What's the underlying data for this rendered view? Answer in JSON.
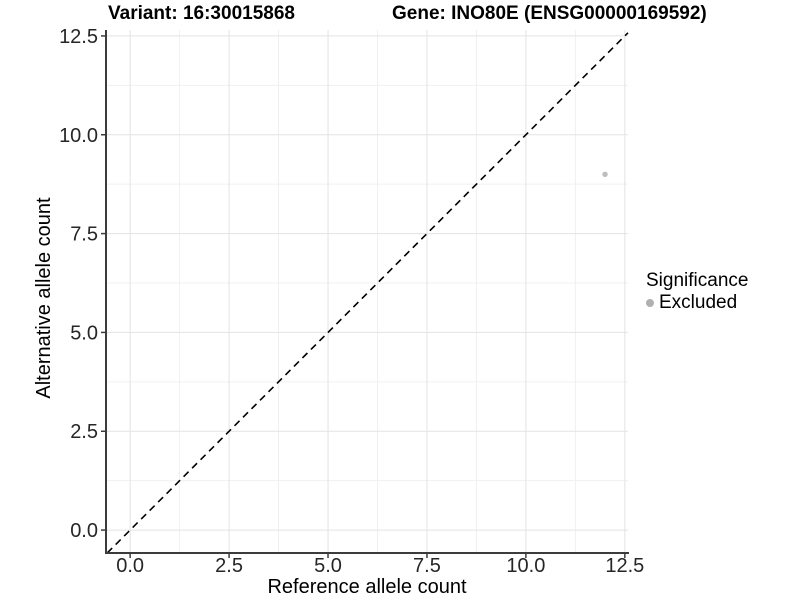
{
  "chart_data": {
    "type": "scatter",
    "titles": {
      "left": "Variant: 16:30015868",
      "right": "Gene: INO80E (ENSG00000169592)"
    },
    "xlabel": "Reference allele count",
    "ylabel": "Alternative allele count",
    "xlim": [
      -0.61,
      12.58
    ],
    "ylim": [
      -0.58,
      12.65
    ],
    "x_ticks": {
      "values": [
        0,
        2.5,
        5,
        7.5,
        10,
        12.5
      ],
      "labels": [
        "0.0",
        "2.5",
        "5.0",
        "7.5",
        "10.0",
        "12.5"
      ]
    },
    "y_ticks": {
      "values": [
        0,
        2.5,
        5,
        7.5,
        10,
        12.5
      ],
      "labels": [
        "0.0",
        "2.5",
        "5.0",
        "7.5",
        "10.0",
        "12.5"
      ]
    },
    "x_minor": [
      1.25,
      3.75,
      6.25,
      8.75,
      11.25
    ],
    "y_minor": [
      1.25,
      3.75,
      6.25,
      8.75,
      11.25
    ],
    "grid": "major+minor",
    "reference_line": {
      "kind": "abline",
      "intercept": 0,
      "slope": 1,
      "style": "dashed",
      "color": "#000000"
    },
    "series": [
      {
        "name": "Excluded",
        "color": "#bdbdbd",
        "marker": "circle",
        "points": [
          {
            "x": 12,
            "y": 9
          }
        ]
      }
    ],
    "legend": {
      "title": "Significance",
      "position": "right",
      "items": [
        {
          "label": "Excluded",
          "color": "#b0b0b0",
          "marker": "circle"
        }
      ]
    }
  },
  "style": {
    "background": "#ffffff",
    "grid_major_color": "#e3e3e3",
    "grid_minor_color": "#f0f0f0",
    "axis_line_color": "#3c3c3c",
    "tick_mark_color": "#3c3c3c",
    "tick_label_color": "#262626",
    "title_color": "#000000"
  }
}
